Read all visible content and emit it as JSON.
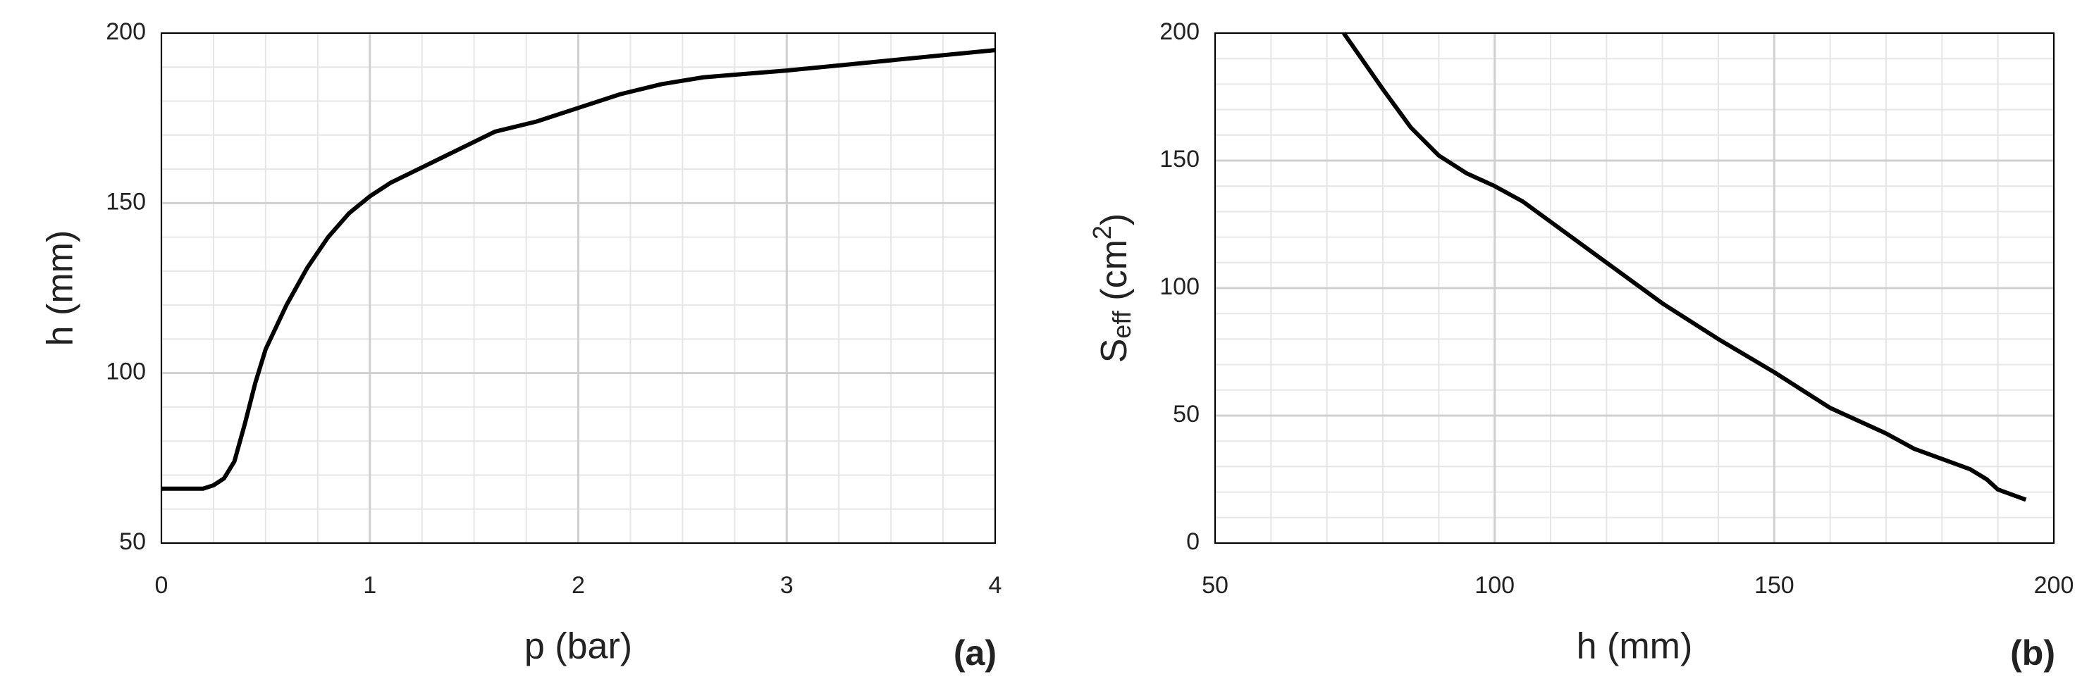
{
  "chart_data": [
    {
      "type": "line",
      "panel": "(a)",
      "xlabel": "p (bar)",
      "ylabel": "h (mm)",
      "xlim": [
        0,
        4
      ],
      "xticks": [
        0,
        1,
        2,
        3,
        4
      ],
      "ylim": [
        50,
        200
      ],
      "yticks": [
        50,
        100,
        150,
        200
      ],
      "grid": true,
      "minor_xstep": 0.25,
      "minor_ystep": 10,
      "series": [
        {
          "color": "#000000",
          "x": [
            0,
            0.1,
            0.2,
            0.25,
            0.3,
            0.35,
            0.4,
            0.45,
            0.5,
            0.6,
            0.7,
            0.8,
            0.9,
            1.0,
            1.1,
            1.2,
            1.4,
            1.5,
            1.6,
            1.8,
            2.0,
            2.2,
            2.4,
            2.6,
            2.8,
            3.0,
            3.5,
            4.0
          ],
          "values": [
            66,
            66,
            66,
            67,
            69,
            74,
            85,
            97,
            107,
            120,
            131,
            140,
            147,
            152,
            156,
            159,
            165,
            168,
            171,
            174,
            178,
            182,
            185,
            187,
            188,
            189,
            192,
            195
          ]
        }
      ]
    },
    {
      "type": "line",
      "panel": "(b)",
      "xlabel": "h (mm)",
      "ylabel": {
        "main": "S",
        "sub": "eff",
        "mid": " (cm",
        "sup": "2",
        "end": ")"
      },
      "xlim": [
        50,
        200
      ],
      "xticks": [
        50,
        100,
        150,
        200
      ],
      "ylim": [
        0,
        200
      ],
      "yticks": [
        0,
        50,
        100,
        150,
        200
      ],
      "grid": true,
      "minor_xstep": 10,
      "minor_ystep": 10,
      "series": [
        {
          "color": "#000000",
          "x": [
            73,
            80,
            85,
            90,
            95,
            100,
            105,
            110,
            120,
            130,
            140,
            150,
            155,
            160,
            170,
            175,
            180,
            185,
            188,
            190,
            195
          ],
          "values": [
            200,
            178,
            163,
            152,
            145,
            140,
            134,
            126,
            110,
            94,
            80,
            67,
            60,
            53,
            43,
            37,
            33,
            29,
            25,
            21,
            17
          ]
        }
      ]
    }
  ]
}
